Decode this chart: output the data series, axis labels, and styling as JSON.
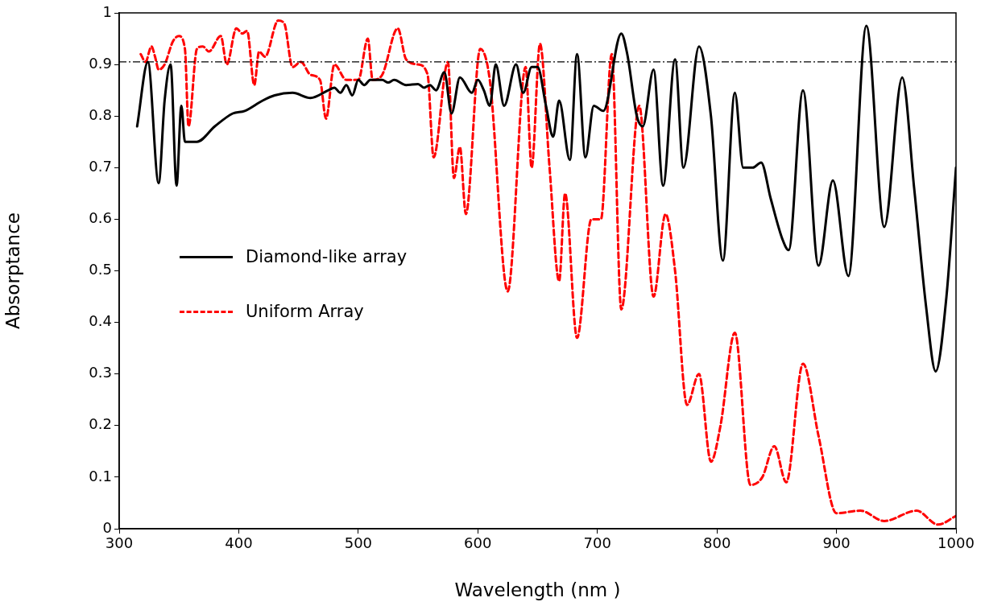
{
  "chart_data": {
    "type": "line",
    "xlabel": "Wavelength (nm )",
    "ylabel": "Absorptance",
    "xlim": [
      300,
      1000
    ],
    "xticks": [
      300,
      400,
      500,
      600,
      700,
      800,
      900,
      1000
    ],
    "ylim": [
      0,
      1
    ],
    "yticks": [
      0,
      0.1,
      0.2,
      0.3,
      0.4,
      0.5,
      0.6,
      0.7,
      0.8,
      0.9,
      1
    ],
    "grid": false,
    "legend": "left",
    "marker": "none",
    "ref_lines": [
      {
        "axis": "y",
        "value": 0.905,
        "color": "#000000",
        "line_style": "dashed"
      }
    ],
    "series": [
      {
        "name": "Diamond-like array",
        "color": "#000000",
        "line_style": "solid",
        "x": [
          315,
          324,
          333,
          338,
          343,
          348,
          352,
          355,
          365,
          380,
          395,
          405,
          420,
          430,
          445,
          460,
          475,
          480,
          485,
          490,
          495,
          500,
          505,
          510,
          520,
          525,
          530,
          540,
          550,
          555,
          560,
          565,
          572,
          578,
          585,
          595,
          600,
          605,
          610,
          615,
          622,
          632,
          638,
          645,
          650,
          657,
          663,
          668,
          677,
          683,
          690,
          697,
          705,
          720,
          725,
          733,
          738,
          747,
          755,
          765,
          772,
          785,
          795,
          805,
          815,
          822,
          830,
          837,
          845,
          855,
          860,
          872,
          885,
          897,
          910,
          925,
          940,
          955,
          965,
          975,
          983,
          992,
          1000
        ],
        "values": [
          0.78,
          0.905,
          0.67,
          0.83,
          0.9,
          0.665,
          0.82,
          0.75,
          0.75,
          0.78,
          0.805,
          0.81,
          0.83,
          0.84,
          0.845,
          0.835,
          0.85,
          0.855,
          0.845,
          0.86,
          0.84,
          0.87,
          0.86,
          0.87,
          0.87,
          0.865,
          0.87,
          0.86,
          0.862,
          0.855,
          0.86,
          0.85,
          0.885,
          0.805,
          0.875,
          0.845,
          0.87,
          0.85,
          0.82,
          0.9,
          0.82,
          0.9,
          0.845,
          0.895,
          0.895,
          0.82,
          0.76,
          0.83,
          0.715,
          0.92,
          0.72,
          0.82,
          0.81,
          0.96,
          0.92,
          0.8,
          0.78,
          0.89,
          0.665,
          0.91,
          0.7,
          0.935,
          0.8,
          0.52,
          0.845,
          0.7,
          0.7,
          0.71,
          0.64,
          0.56,
          0.54,
          0.85,
          0.51,
          0.675,
          0.49,
          0.975,
          0.585,
          0.875,
          0.66,
          0.43,
          0.305,
          0.45,
          0.7
        ]
      },
      {
        "name": "Uniform Array",
        "color": "#ff0000",
        "line_style": "dashed",
        "x": [
          318,
          322,
          327,
          330,
          333,
          338,
          345,
          350,
          355,
          358,
          365,
          370,
          375,
          385,
          390,
          398,
          403,
          407,
          413,
          417,
          422,
          433,
          438,
          445,
          452,
          460,
          468,
          473,
          480,
          490,
          500,
          508,
          512,
          520,
          533,
          540,
          550,
          558,
          563,
          575,
          580,
          585,
          590,
          602,
          610,
          625,
          640,
          645,
          652,
          660,
          668,
          673,
          683,
          695,
          703,
          712,
          720,
          735,
          747,
          757,
          765,
          775,
          785,
          795,
          803,
          815,
          828,
          838,
          848,
          858,
          872,
          885,
          900,
          920,
          940,
          967,
          985,
          1000
        ],
        "values": [
          0.92,
          0.905,
          0.935,
          0.915,
          0.89,
          0.9,
          0.945,
          0.955,
          0.93,
          0.78,
          0.93,
          0.935,
          0.925,
          0.955,
          0.9,
          0.97,
          0.96,
          0.965,
          0.86,
          0.925,
          0.915,
          0.985,
          0.98,
          0.895,
          0.905,
          0.88,
          0.87,
          0.795,
          0.9,
          0.87,
          0.87,
          0.95,
          0.87,
          0.88,
          0.97,
          0.91,
          0.9,
          0.88,
          0.72,
          0.905,
          0.68,
          0.74,
          0.61,
          0.93,
          0.87,
          0.46,
          0.895,
          0.7,
          0.94,
          0.7,
          0.48,
          0.65,
          0.37,
          0.6,
          0.6,
          0.92,
          0.425,
          0.82,
          0.45,
          0.61,
          0.5,
          0.24,
          0.3,
          0.13,
          0.2,
          0.38,
          0.085,
          0.1,
          0.16,
          0.09,
          0.32,
          0.18,
          0.03,
          0.035,
          0.015,
          0.035,
          0.008,
          0.025
        ]
      }
    ]
  }
}
